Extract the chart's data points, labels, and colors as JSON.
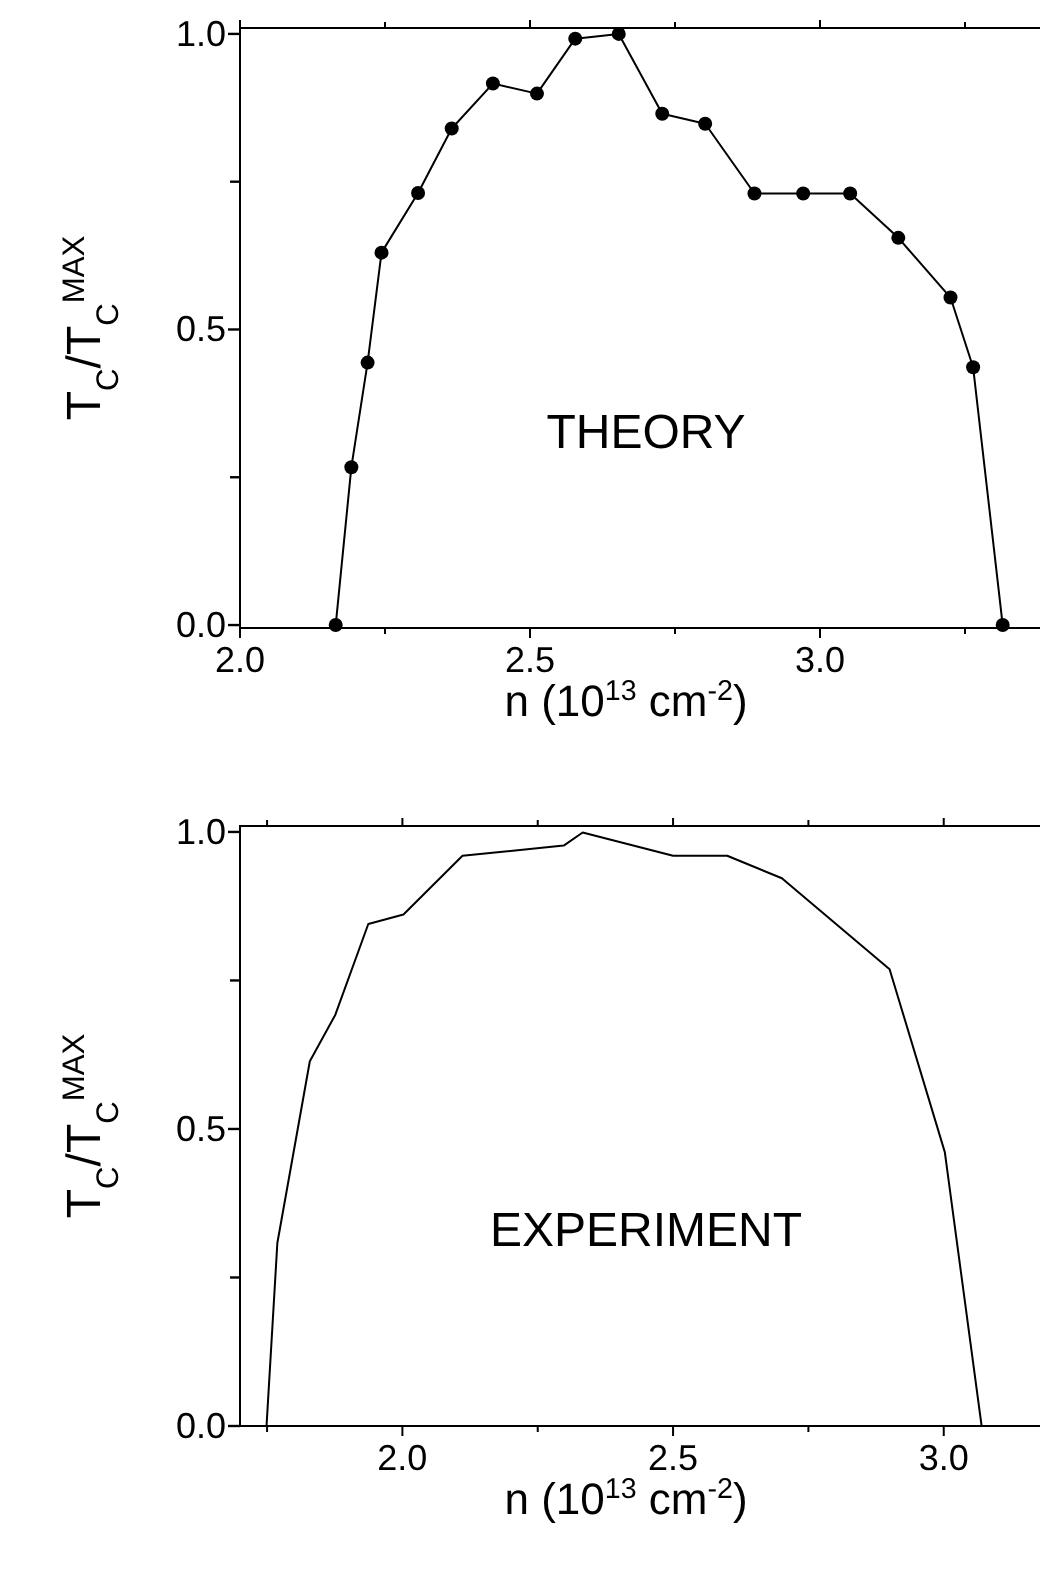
{
  "chart_data": [
    {
      "type": "line",
      "xlabel": "n (10$^{13}$ cm$^{-2}$)",
      "ylabel": "T$_{C}$/T$_{C}$$^{MAX}$",
      "annotations": [
        "THEORY"
      ],
      "marker": "circle",
      "xlim": [
        2.0,
        3.4
      ],
      "xticks": [
        {
          "value": 2.0,
          "label": "2.0"
        },
        {
          "value": 2.25,
          "label": null
        },
        {
          "value": 2.5,
          "label": "2.5"
        },
        {
          "value": 2.75,
          "label": null
        },
        {
          "value": 3.0,
          "label": "3.0"
        },
        {
          "value": 3.25,
          "label": null
        }
      ],
      "ylim": [
        -0.005,
        1.01
      ],
      "yticks": [
        {
          "value": 0.0,
          "label": "0.0"
        },
        {
          "value": 0.25,
          "label": null
        },
        {
          "value": 0.5,
          "label": "0.5"
        },
        {
          "value": 0.75,
          "label": null
        },
        {
          "value": 1.0,
          "label": "1.0"
        }
      ],
      "series": [
        {
          "color": "#000000",
          "x": [
            2.165,
            2.192,
            2.22,
            2.244,
            2.307,
            2.365,
            2.436,
            2.512,
            2.578,
            2.653,
            2.728,
            2.802,
            2.887,
            2.971,
            3.052,
            3.135,
            3.225,
            3.264,
            3.315
          ],
          "values": [
            0,
            0.267,
            0.444,
            0.63,
            0.731,
            0.84,
            0.916,
            0.899,
            0.992,
            1.0,
            0.865,
            0.848,
            0.73,
            0.73,
            0.73,
            0.655,
            0.554,
            0.436,
            0
          ]
        }
      ]
    },
    {
      "type": "line",
      "xlabel": "n (10$^{13}$ cm$^{-2}$)",
      "ylabel": "T$_{C}$/T$_{C}$$^{MAX}$",
      "annotations": [
        "EXPERIMENT"
      ],
      "xlim": [
        1.7,
        3.2
      ],
      "xticks": [
        {
          "value": 1.75,
          "label": null
        },
        {
          "value": 2.0,
          "label": "2.0"
        },
        {
          "value": 2.25,
          "label": null
        },
        {
          "value": 2.5,
          "label": "2.5"
        },
        {
          "value": 2.75,
          "label": null
        },
        {
          "value": 3.0,
          "label": "3.0"
        }
      ],
      "ylim": [
        0,
        1.01
      ],
      "yticks": [
        {
          "value": 0.0,
          "label": "0.0"
        },
        {
          "value": 0.25,
          "label": null
        },
        {
          "value": 0.5,
          "label": "0.5"
        },
        {
          "value": 0.75,
          "label": null
        },
        {
          "value": 1.0,
          "label": "1.0"
        }
      ],
      "series": [
        {
          "color": "#000000",
          "x": [
            1.749,
            1.769,
            1.829,
            1.876,
            1.937,
            2.002,
            2.111,
            2.298,
            2.333,
            2.5,
            2.6,
            2.701,
            2.9,
            3.002,
            3.07
          ],
          "values": [
            0,
            0.308,
            0.614,
            0.692,
            0.845,
            0.861,
            0.96,
            0.977,
            0.999,
            0.96,
            0.96,
            0.922,
            0.769,
            0.461,
            0
          ]
        }
      ]
    }
  ]
}
